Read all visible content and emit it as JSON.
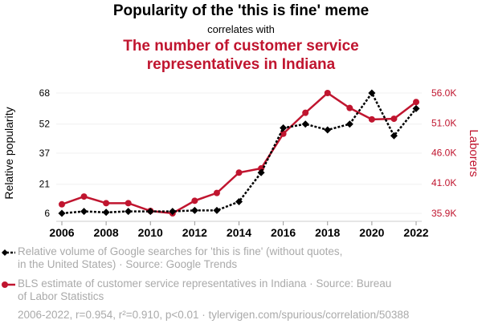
{
  "header": {
    "title": "Popularity of the 'this is fine' meme",
    "correlates": "correlates with",
    "title2_line1": "The number of customer service",
    "title2_line2": "representatives in Indiana"
  },
  "chart_data": {
    "type": "line",
    "x": [
      2006,
      2007,
      2008,
      2009,
      2010,
      2011,
      2012,
      2013,
      2014,
      2015,
      2016,
      2017,
      2018,
      2019,
      2020,
      2021,
      2022
    ],
    "series": [
      {
        "name": "Relative volume of Google searches for 'this is fine' (without quotes, in the United States) · Source: Google Trends",
        "axis": "left",
        "color": "#000000",
        "values": [
          6,
          7,
          6.5,
          7,
          7,
          7,
          7.5,
          7.5,
          12,
          27,
          50,
          52,
          49,
          52,
          68,
          46,
          60
        ]
      },
      {
        "name": "BLS estimate of customer service representatives in Indiana · Source: Bureau of Labor Statistics",
        "axis": "right",
        "color": "#c0152f",
        "values": [
          37.4,
          38.7,
          37.6,
          37.6,
          36.3,
          35.9,
          38.0,
          39.3,
          42.7,
          43.4,
          49.2,
          52.7,
          56.0,
          53.5,
          51.6,
          51.7,
          54.5
        ]
      }
    ],
    "ylabel": "Relative popularity",
    "y2label": "Laborers",
    "ylim": [
      6,
      68
    ],
    "y2lim": [
      35.9,
      56.0
    ],
    "yticks": [
      "6",
      "21",
      "37",
      "52",
      "68"
    ],
    "ytick_values": [
      6,
      21,
      37,
      52,
      68
    ],
    "y2ticks": [
      "35.9K",
      "41.0K",
      "46.0K",
      "51.0K",
      "56.0K"
    ],
    "y2tick_values": [
      35.9,
      41.0,
      46.0,
      51.0,
      56.0
    ],
    "xticks": [
      "2006",
      "2008",
      "2010",
      "2012",
      "2014",
      "2016",
      "2018",
      "2020",
      "2022"
    ],
    "grid": true
  },
  "legend": {
    "l1a": "Relative volume of Google searches for 'this is fine' (without quotes,",
    "l1b": "in the United States) · Source: Google Trends",
    "l2a": "BLS estimate of customer service representatives in Indiana · Source: Bureau",
    "l2b": "of Labor Statistics"
  },
  "footer": "2006-2022, r=0.954, r²=0.910, p<0.01 · tylervigen.com/spurious/correlation/50388"
}
